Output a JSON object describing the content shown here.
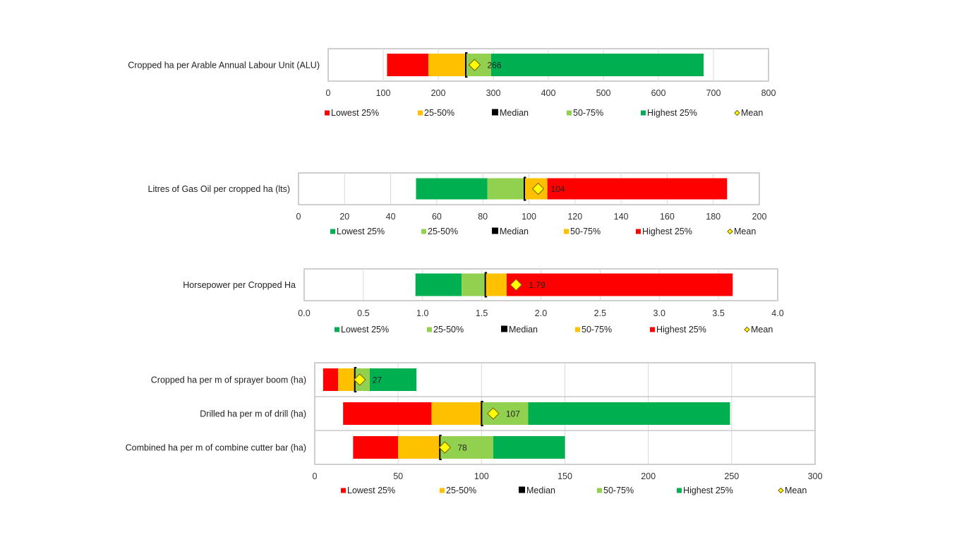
{
  "colors": {
    "red": "#ff0000",
    "amber": "#ffc000",
    "light_green": "#92d050",
    "green": "#00b050",
    "median": "#000000",
    "mean": "#ffff00",
    "mean_stroke": "#7f6000",
    "grid": "#d9d9d9",
    "frame": "#bfbfbf"
  },
  "chart_data": [
    {
      "type": "bar",
      "subtype": "stacked-horizontal-quartile",
      "title": "",
      "categories": [
        "Cropped ha per Arable Annual Labour Unit (ALU)"
      ],
      "xlim": [
        0,
        800
      ],
      "xticks": [
        0,
        100,
        200,
        300,
        400,
        500,
        600,
        700,
        800
      ],
      "tick_labels": [
        "0",
        "100",
        "200",
        "300",
        "400",
        "500",
        "600",
        "700",
        "800"
      ],
      "grid": true,
      "legend_position": "bottom",
      "series": [
        {
          "name": "Lowest 25%",
          "color": "red",
          "start": [
            107
          ],
          "end": [
            182
          ]
        },
        {
          "name": "25-50%",
          "color": "amber",
          "start": [
            182
          ],
          "end": [
            250
          ]
        },
        {
          "name": "50-75%",
          "color": "light_green",
          "start": [
            250
          ],
          "end": [
            296
          ]
        },
        {
          "name": "Highest 25%",
          "color": "green",
          "start": [
            296
          ],
          "end": [
            682
          ]
        }
      ],
      "median": [
        250
      ],
      "mean": [
        266
      ],
      "mean_labels": [
        "266"
      ],
      "legend": [
        {
          "label": "Lowest 25%",
          "color": "red",
          "shape": "square"
        },
        {
          "label": "25-50%",
          "color": "amber",
          "shape": "square"
        },
        {
          "label": "Median",
          "color": "median",
          "shape": "square"
        },
        {
          "label": "50-75%",
          "color": "light_green",
          "shape": "square"
        },
        {
          "label": "Highest 25%",
          "color": "green",
          "shape": "square"
        },
        {
          "label": "Mean",
          "color": "mean",
          "shape": "diamond"
        }
      ]
    },
    {
      "type": "bar",
      "subtype": "stacked-horizontal-quartile",
      "title": "",
      "categories": [
        "Litres of Gas Oil per cropped ha (lts)"
      ],
      "xlim": [
        0,
        200
      ],
      "xticks": [
        0,
        20,
        40,
        60,
        80,
        100,
        120,
        140,
        160,
        180,
        200
      ],
      "tick_labels": [
        "0",
        "20",
        "40",
        "60",
        "80",
        "100",
        "120",
        "140",
        "160",
        "180",
        "200"
      ],
      "grid": true,
      "legend_position": "bottom",
      "series": [
        {
          "name": "Lowest 25%",
          "color": "green",
          "start": [
            51
          ],
          "end": [
            82
          ]
        },
        {
          "name": "25-50%",
          "color": "light_green",
          "start": [
            82
          ],
          "end": [
            98
          ]
        },
        {
          "name": "50-75%",
          "color": "amber",
          "start": [
            98
          ],
          "end": [
            108
          ]
        },
        {
          "name": "Highest 25%",
          "color": "red",
          "start": [
            108
          ],
          "end": [
            186
          ]
        }
      ],
      "median": [
        98
      ],
      "mean": [
        104
      ],
      "mean_labels": [
        "104"
      ],
      "legend": [
        {
          "label": "Lowest 25%",
          "color": "green",
          "shape": "square"
        },
        {
          "label": "25-50%",
          "color": "light_green",
          "shape": "square"
        },
        {
          "label": "Median",
          "color": "median",
          "shape": "square"
        },
        {
          "label": "50-75%",
          "color": "amber",
          "shape": "square"
        },
        {
          "label": "Highest 25%",
          "color": "red",
          "shape": "square"
        },
        {
          "label": "Mean",
          "color": "mean",
          "shape": "diamond"
        }
      ]
    },
    {
      "type": "bar",
      "subtype": "stacked-horizontal-quartile",
      "title": "",
      "categories": [
        "Horsepower per Cropped Ha"
      ],
      "xlim": [
        0,
        4.0
      ],
      "xticks": [
        0,
        0.5,
        1.0,
        1.5,
        2.0,
        2.5,
        3.0,
        3.5,
        4.0
      ],
      "tick_labels": [
        "0.0",
        "0.5",
        "1.0",
        "1.5",
        "2.0",
        "2.5",
        "3.0",
        "3.5",
        "4.0"
      ],
      "grid": true,
      "legend_position": "bottom",
      "series": [
        {
          "name": "Lowest 25%",
          "color": "green",
          "start": [
            0.94
          ],
          "end": [
            1.33
          ]
        },
        {
          "name": "25-50%",
          "color": "light_green",
          "start": [
            1.33
          ],
          "end": [
            1.53
          ]
        },
        {
          "name": "50-75%",
          "color": "amber",
          "start": [
            1.53
          ],
          "end": [
            1.71
          ]
        },
        {
          "name": "Highest 25%",
          "color": "red",
          "start": [
            1.71
          ],
          "end": [
            3.62
          ]
        }
      ],
      "median": [
        1.53
      ],
      "mean": [
        1.79
      ],
      "mean_labels": [
        "1.79"
      ],
      "legend": [
        {
          "label": "Lowest 25%",
          "color": "green",
          "shape": "square"
        },
        {
          "label": "25-50%",
          "color": "light_green",
          "shape": "square"
        },
        {
          "label": "Median",
          "color": "median",
          "shape": "square"
        },
        {
          "label": "50-75%",
          "color": "amber",
          "shape": "square"
        },
        {
          "label": "Highest 25%",
          "color": "red",
          "shape": "square"
        },
        {
          "label": "Mean",
          "color": "mean",
          "shape": "diamond"
        }
      ]
    },
    {
      "type": "bar",
      "subtype": "stacked-horizontal-quartile",
      "title": "",
      "categories": [
        "Cropped ha per m of sprayer boom (ha)",
        "Drilled ha per m of drill (ha)",
        "Combined ha per m of combine cutter bar (ha)"
      ],
      "xlim": [
        0,
        300
      ],
      "xticks": [
        0,
        50,
        100,
        150,
        200,
        250,
        300
      ],
      "tick_labels": [
        "0",
        "50",
        "100",
        "150",
        "200",
        "250",
        "300"
      ],
      "grid": true,
      "legend_position": "bottom",
      "series": [
        {
          "name": "Lowest 25%",
          "color": "red",
          "start": [
            5,
            17,
            23
          ],
          "end": [
            14,
            70,
            50
          ]
        },
        {
          "name": "25-50%",
          "color": "amber",
          "start": [
            14,
            70,
            50
          ],
          "end": [
            24,
            100,
            75
          ]
        },
        {
          "name": "50-75%",
          "color": "light_green",
          "start": [
            24,
            100,
            75
          ],
          "end": [
            33,
            128,
            107
          ]
        },
        {
          "name": "Highest 25%",
          "color": "green",
          "start": [
            33,
            128,
            107
          ],
          "end": [
            61,
            249,
            150
          ]
        }
      ],
      "median": [
        24,
        100,
        75
      ],
      "mean": [
        27,
        107,
        78
      ],
      "mean_labels": [
        "27",
        "107",
        "78"
      ],
      "legend": [
        {
          "label": "Lowest 25%",
          "color": "red",
          "shape": "square"
        },
        {
          "label": "25-50%",
          "color": "amber",
          "shape": "square"
        },
        {
          "label": "Median",
          "color": "median",
          "shape": "square"
        },
        {
          "label": "50-75%",
          "color": "light_green",
          "shape": "square"
        },
        {
          "label": "Highest 25%",
          "color": "green",
          "shape": "square"
        },
        {
          "label": "Mean",
          "color": "mean",
          "shape": "diamond"
        }
      ]
    }
  ]
}
